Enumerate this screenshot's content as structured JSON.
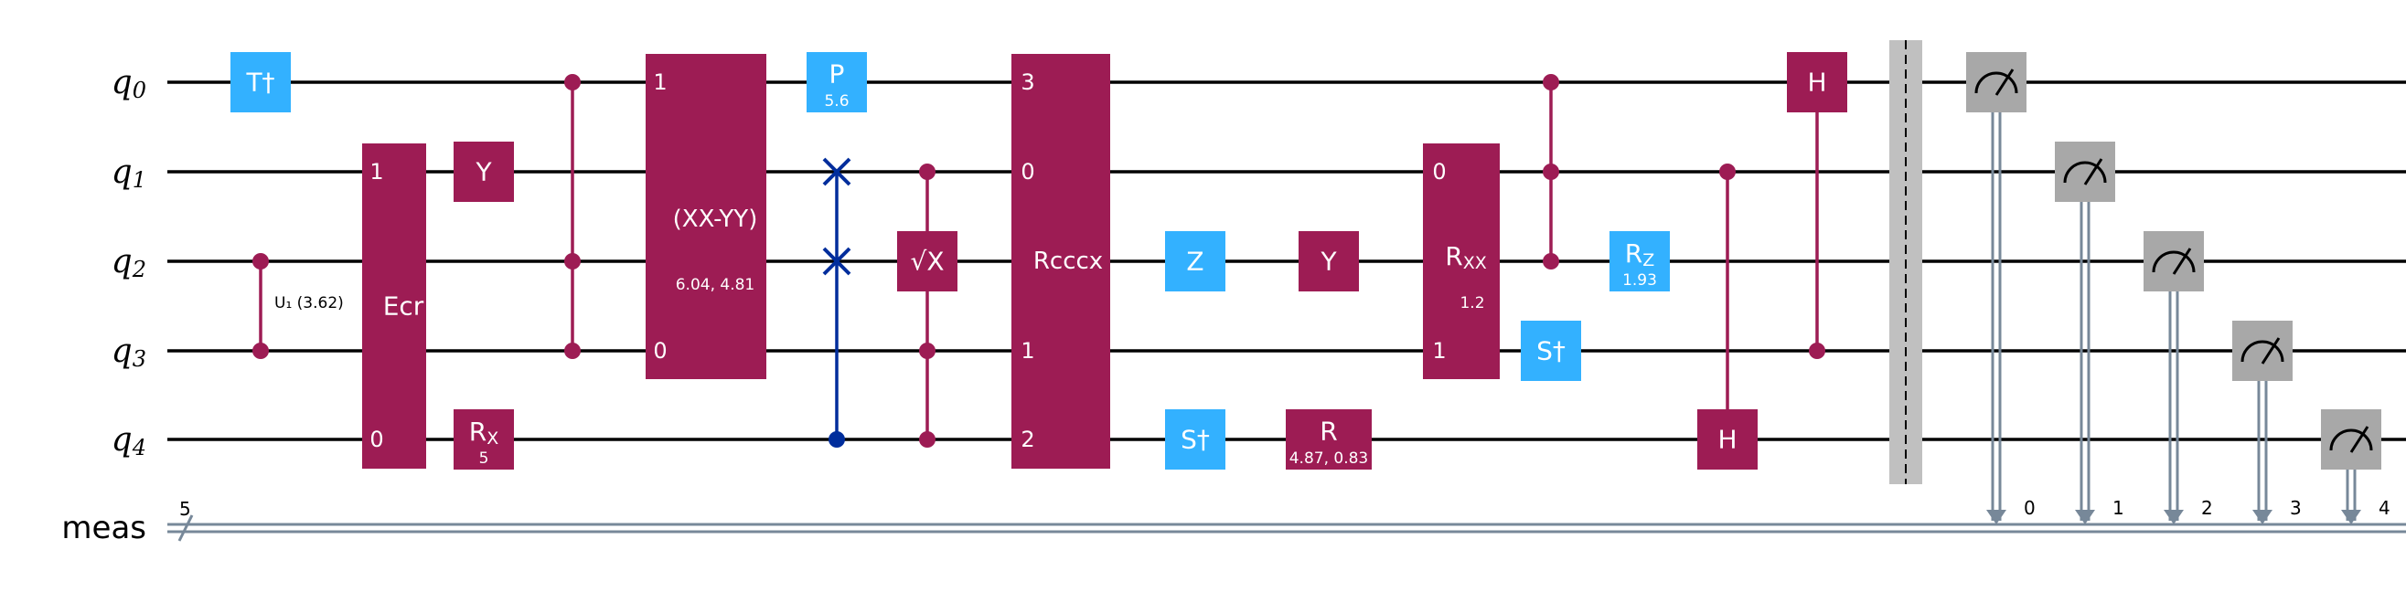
{
  "colors": {
    "purple": "#9d1c54",
    "blue": "#33b1ff",
    "swapblue": "#002d9c",
    "gray": "#a8a8a8",
    "barrier": "#c0c0c0",
    "creg": "#778899"
  },
  "registers": {
    "qubits": [
      {
        "sym": "q",
        "sub": "0"
      },
      {
        "sym": "q",
        "sub": "1"
      },
      {
        "sym": "q",
        "sub": "2"
      },
      {
        "sym": "q",
        "sub": "3"
      },
      {
        "sym": "q",
        "sub": "4"
      }
    ],
    "classical": {
      "label": "meas",
      "size": "5"
    }
  },
  "gates": {
    "tdg": {
      "label": "T†"
    },
    "cu1": {
      "label": "U₁ (3.62)"
    },
    "ecr": {
      "label": "Ecr",
      "pin_top": "1",
      "pin_bottom": "0"
    },
    "y1": {
      "label": "Y"
    },
    "rx": {
      "label": "R",
      "sub": "X",
      "param": "5"
    },
    "xxmyy": {
      "label": "(XX-YY)",
      "param": "6.04, 4.81",
      "pin_top": "1",
      "pin_bottom": "0"
    },
    "p": {
      "label": "P",
      "param": "5.6"
    },
    "sx": {
      "label": "√X"
    },
    "rcccx": {
      "label": "Rcccx",
      "pins": [
        "3",
        "0",
        "",
        "1",
        "2"
      ]
    },
    "z": {
      "label": "Z"
    },
    "sdg4": {
      "label": "S†"
    },
    "y2": {
      "label": "Y"
    },
    "r": {
      "label": "R",
      "param": "4.87, 0.83"
    },
    "rxx": {
      "label": "R",
      "sub": "XX",
      "param": "1.2",
      "pin_top": "0",
      "pin_bottom": "1"
    },
    "sdg3": {
      "label": "S†"
    },
    "rz": {
      "label": "R",
      "sub": "Z",
      "param": "1.93"
    },
    "h4": {
      "label": "H"
    },
    "h0": {
      "label": "H"
    }
  },
  "measurements": [
    "0",
    "1",
    "2",
    "3",
    "4"
  ]
}
